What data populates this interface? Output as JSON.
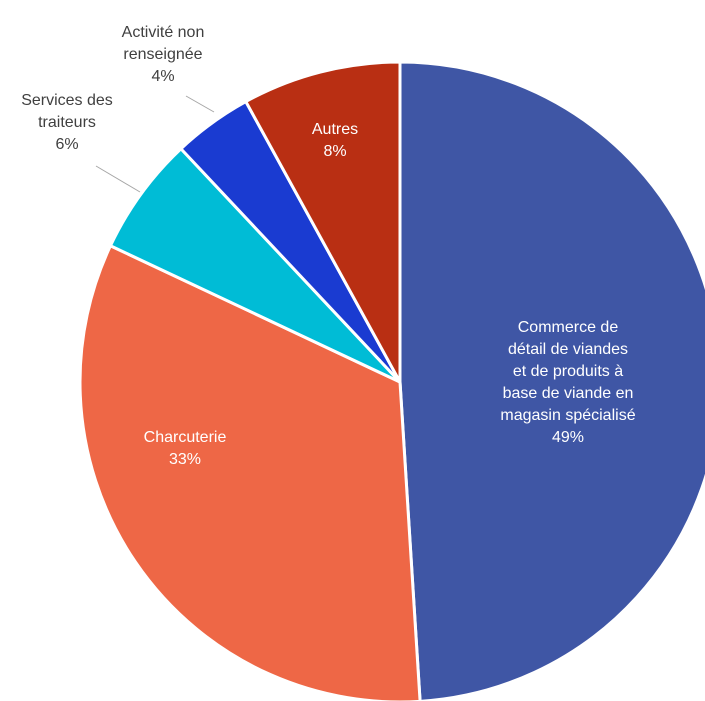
{
  "chart_data": {
    "type": "pie",
    "categories": [
      "Commerce de\ndétail de viandes\net de produits à\nbase de viande en\nmagasin spécialisé",
      "Charcuterie",
      "Services des\ntraiteurs",
      "Activité non\nrenseignée",
      "Autres"
    ],
    "values": [
      49,
      33,
      6,
      4,
      8
    ],
    "value_labels": [
      "49%",
      "33%",
      "6%",
      "4%",
      "8%"
    ],
    "colors": [
      "#3f56a5",
      "#ee6746",
      "#00bcd6",
      "#1a3bd1",
      "#b92f13"
    ]
  }
}
